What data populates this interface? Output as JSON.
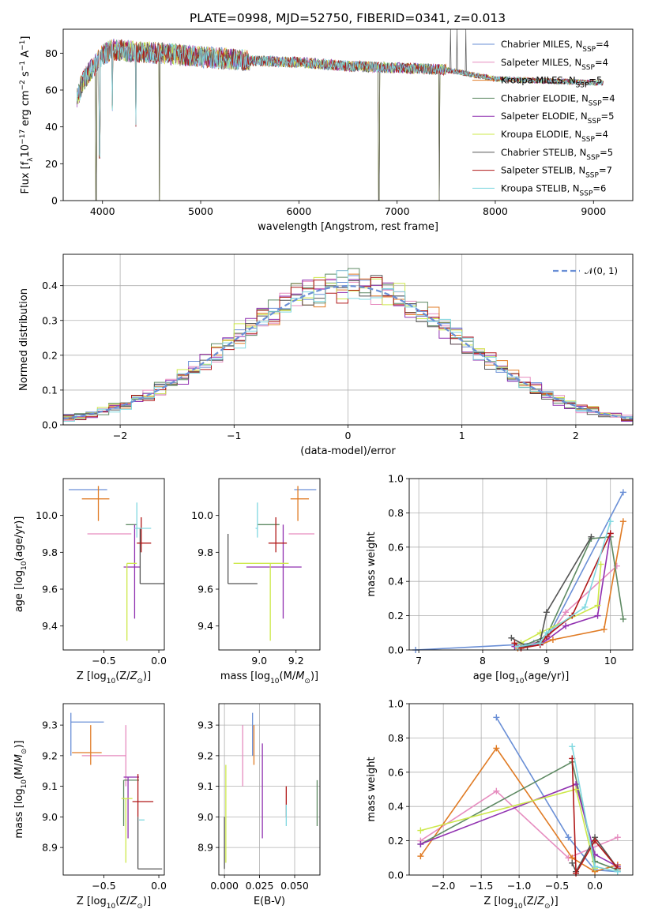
{
  "title": "PLATE=0998, MJD=52750, FIBERID=0341, z=0.013",
  "colors": [
    "#6a8fd6",
    "#e68cbf",
    "#e07b24",
    "#5e8a63",
    "#9030b0",
    "#cde84a",
    "#555555",
    "#b01818",
    "#80d8e0"
  ],
  "chart_data": [
    {
      "id": "spectrum",
      "type": "line",
      "xlabel": "wavelength [Angstrom, rest frame]",
      "ylabel": "Flux [f_λ10^-17 erg cm^-2 s^-1 A^-1]",
      "xlim": [
        3600,
        9400
      ],
      "ylim": [
        0,
        93
      ],
      "xticks": [
        4000,
        5000,
        6000,
        7000,
        8000,
        9000
      ],
      "yticks": [
        0,
        20,
        40,
        60,
        80
      ],
      "legend_position": "top-right",
      "legend": [
        "Chabrier MILES, N_SSP=4",
        "Salpeter MILES, N_SSP=4",
        "Kroupa MILES, N_SSP=5",
        "Chabrier ELODIE, N_SSP=4",
        "Salpeter ELODIE, N_SSP=5",
        "Kroupa ELODIE, N_SSP=4",
        "Chabrier STELIB, N_SSP=5",
        "Salpeter STELIB, N_SSP=7",
        "Kroupa STELIB, N_SSP=6"
      ],
      "continuum": {
        "x": [
          3740,
          3800,
          3900,
          4000,
          4100,
          4300,
          4600,
          5000,
          5500,
          6000,
          6500,
          7000,
          7500,
          8000,
          8500,
          9000,
          9100
        ],
        "y": [
          55,
          65,
          72,
          79,
          82,
          81,
          80,
          78,
          76,
          75,
          73,
          72,
          71,
          66,
          65,
          64,
          64
        ]
      },
      "dips": [
        {
          "x": 3935,
          "y": 0
        },
        {
          "x": 4580,
          "y": 0
        },
        {
          "x": 6815,
          "y": 0
        },
        {
          "x": 7430,
          "y": 0
        },
        {
          "x": 4340,
          "y": 40
        },
        {
          "x": 4100,
          "y": 48
        },
        {
          "x": 3970,
          "y": 22
        }
      ],
      "spikes": [
        {
          "x": 7545,
          "y": 93
        },
        {
          "x": 7610,
          "y": 93
        },
        {
          "x": 7700,
          "y": 93
        }
      ]
    },
    {
      "id": "residuals",
      "type": "step",
      "xlabel": "(data-model)/error",
      "ylabel": "Normed distribution",
      "xlim": [
        -2.5,
        2.5
      ],
      "ylim": [
        0,
        0.49
      ],
      "xticks": [
        -2,
        -1,
        0,
        1,
        2
      ],
      "yticks": [
        0.0,
        0.1,
        0.2,
        0.3,
        0.4
      ],
      "grid": true,
      "legend_position": "top-right",
      "legend": [
        "𝒩(0, 1)"
      ],
      "bin_width": 0.1,
      "reference": "gaussian_mean0_sigma1"
    },
    {
      "id": "age_vs_Z",
      "type": "errorbar",
      "xlabel": "Z [log10(Z/Z⊙)]",
      "ylabel": "age [log10(age/yr)]",
      "xlim": [
        -0.87,
        0.05
      ],
      "ylim": [
        9.27,
        10.2
      ],
      "xticks": [
        -0.5,
        0.0
      ],
      "yticks": [
        9.4,
        9.6,
        9.8,
        10.0
      ],
      "points": [
        {
          "x": -0.65,
          "y": 10.14,
          "xerr": [
            0.17,
            0.18
          ],
          "yerr": [
            0.0,
            0.0
          ]
        },
        {
          "x": -0.45,
          "y": 9.9,
          "xerr": [
            0.2,
            0.2
          ],
          "yerr": [
            0.0,
            0.0
          ]
        },
        {
          "x": -0.55,
          "y": 10.09,
          "xerr": [
            0.15,
            0.1
          ],
          "yerr": [
            0.12,
            0.07
          ]
        },
        {
          "x": -0.25,
          "y": 9.95,
          "xerr": [
            0.05,
            0.05
          ],
          "yerr": [
            0.0,
            0.0
          ]
        },
        {
          "x": -0.22,
          "y": 9.72,
          "xerr": [
            0.1,
            0.05
          ],
          "yerr": [
            0.28,
            0.23
          ]
        },
        {
          "x": -0.29,
          "y": 9.74,
          "xerr": [
            0.0,
            0.09
          ],
          "yerr": [
            0.42,
            0.0
          ]
        },
        {
          "x": -0.17,
          "y": 9.63,
          "xerr": [
            0.0,
            0.22
          ],
          "yerr": [
            0.0,
            0.3
          ]
        },
        {
          "x": -0.16,
          "y": 9.85,
          "xerr": [
            0.04,
            0.09
          ],
          "yerr": [
            0.05,
            0.14
          ]
        },
        {
          "x": -0.2,
          "y": 9.93,
          "xerr": [
            0.02,
            0.13
          ],
          "yerr": [
            0.05,
            0.14
          ]
        }
      ]
    },
    {
      "id": "age_vs_mass",
      "type": "errorbar",
      "xlabel": "mass [log10(M/M⊙)]",
      "ylabel": "",
      "xlim": [
        8.78,
        9.33
      ],
      "ylim": [
        9.27,
        10.2
      ],
      "xticks": [
        9.0,
        9.2
      ],
      "yticks": [
        9.4,
        9.6,
        9.8,
        10.0
      ],
      "points": [
        {
          "x": 9.31,
          "y": 10.14,
          "xerr": [
            0.12,
            0.0
          ],
          "yerr": [
            0.0,
            0.0
          ]
        },
        {
          "x": 9.2,
          "y": 9.9,
          "xerr": [
            0.04,
            0.1
          ],
          "yerr": [
            0.0,
            0.0
          ]
        },
        {
          "x": 9.21,
          "y": 10.09,
          "xerr": [
            0.04,
            0.06
          ],
          "yerr": [
            0.12,
            0.07
          ]
        },
        {
          "x": 9.02,
          "y": 9.95,
          "xerr": [
            0.03,
            0.09
          ],
          "yerr": [
            0.0,
            0.0
          ]
        },
        {
          "x": 9.13,
          "y": 9.72,
          "xerr": [
            0.2,
            0.1
          ],
          "yerr": [
            0.28,
            0.23
          ]
        },
        {
          "x": 9.06,
          "y": 9.74,
          "xerr": [
            0.2,
            0.1
          ],
          "yerr": [
            0.42,
            0.0
          ]
        },
        {
          "x": 8.83,
          "y": 9.63,
          "xerr": [
            0.0,
            0.16
          ],
          "yerr": [
            0.0,
            0.27
          ]
        },
        {
          "x": 9.09,
          "y": 9.85,
          "xerr": [
            0.04,
            0.06
          ],
          "yerr": [
            0.05,
            0.14
          ]
        },
        {
          "x": 8.99,
          "y": 9.93,
          "xerr": [
            0.01,
            0.0
          ],
          "yerr": [
            0.05,
            0.14
          ]
        }
      ]
    },
    {
      "id": "weight_vs_age",
      "type": "line",
      "xlabel": "age [log10(age/yr)]",
      "ylabel": "mass weight",
      "xlim": [
        6.85,
        10.35
      ],
      "ylim": [
        0,
        1.0
      ],
      "xticks": [
        7,
        8,
        9,
        10
      ],
      "yticks": [
        0.0,
        0.2,
        0.4,
        0.6,
        0.8,
        1.0
      ],
      "grid": true,
      "series": [
        {
          "x": [
            6.95,
            8.5,
            8.8,
            9.0,
            10.2
          ],
          "y": [
            0.0,
            0.03,
            0.04,
            0.06,
            0.92
          ]
        },
        {
          "x": [
            8.6,
            9.0,
            9.3,
            10.1
          ],
          "y": [
            0.02,
            0.06,
            0.22,
            0.49
          ]
        },
        {
          "x": [
            8.55,
            8.9,
            9.1,
            9.9,
            10.2
          ],
          "y": [
            0.01,
            0.03,
            0.06,
            0.12,
            0.75
          ]
        },
        {
          "x": [
            8.6,
            9.0,
            9.7,
            10.0,
            10.2
          ],
          "y": [
            0.02,
            0.08,
            0.65,
            0.66,
            0.18
          ]
        },
        {
          "x": [
            8.5,
            8.9,
            9.3,
            9.8,
            10.0
          ],
          "y": [
            0.02,
            0.03,
            0.14,
            0.2,
            0.68
          ]
        },
        {
          "x": [
            8.6,
            8.9,
            9.8,
            9.85
          ],
          "y": [
            0.04,
            0.1,
            0.26,
            0.5
          ]
        },
        {
          "x": [
            8.45,
            8.7,
            8.9,
            9.0,
            9.7
          ],
          "y": [
            0.07,
            0.02,
            0.05,
            0.22,
            0.66
          ]
        },
        {
          "x": [
            8.5,
            8.6,
            8.9,
            9.0,
            9.4,
            10.0
          ],
          "y": [
            0.04,
            0.01,
            0.03,
            0.08,
            0.2,
            0.68
          ]
        },
        {
          "x": [
            8.55,
            8.9,
            9.0,
            9.6,
            10.0
          ],
          "y": [
            0.02,
            0.04,
            0.1,
            0.25,
            0.75
          ]
        }
      ]
    },
    {
      "id": "mass_vs_Z",
      "type": "errorbar",
      "xlabel": "Z [log10(Z/Z⊙)]",
      "ylabel": "mass [log10(M/M⊙)]",
      "xlim": [
        -0.87,
        0.05
      ],
      "ylim": [
        8.81,
        9.37
      ],
      "xticks": [
        -0.5,
        0.0
      ],
      "yticks": [
        8.9,
        9.0,
        9.1,
        9.2,
        9.3
      ],
      "points": [
        {
          "x": -0.8,
          "y": 9.31,
          "xerr": [
            0.0,
            0.3
          ],
          "yerr": [
            0.11,
            0.03
          ]
        },
        {
          "x": -0.3,
          "y": 9.2,
          "xerr": [
            0.4,
            0.0
          ],
          "yerr": [
            0.1,
            0.1
          ]
        },
        {
          "x": -0.62,
          "y": 9.21,
          "xerr": [
            0.17,
            0.1
          ],
          "yerr": [
            0.04,
            0.09
          ]
        },
        {
          "x": -0.32,
          "y": 9.12,
          "xerr": [
            0.0,
            0.14
          ],
          "yerr": [
            0.15,
            0.0
          ]
        },
        {
          "x": -0.28,
          "y": 9.13,
          "xerr": [
            0.04,
            0.1
          ],
          "yerr": [
            0.2,
            0.0
          ]
        },
        {
          "x": -0.3,
          "y": 9.06,
          "xerr": [
            0.04,
            0.06
          ],
          "yerr": [
            0.21,
            0.0
          ]
        },
        {
          "x": -0.19,
          "y": 8.83,
          "xerr": [
            0.0,
            0.22
          ],
          "yerr": [
            0.0,
            0.17
          ]
        },
        {
          "x": -0.19,
          "y": 9.05,
          "xerr": [
            0.05,
            0.14
          ],
          "yerr": [
            0.05,
            0.09
          ]
        },
        {
          "x": -0.13,
          "y": 8.99,
          "xerr": [
            0.05,
            0.0
          ],
          "yerr": [
            0.0,
            0.0
          ]
        }
      ]
    },
    {
      "id": "mass_vs_EBV",
      "type": "errorbar",
      "xlabel": "E(B-V)",
      "ylabel": "",
      "xlim": [
        -0.004,
        0.068
      ],
      "ylim": [
        8.81,
        9.37
      ],
      "xticks": [
        0.0,
        0.025,
        0.05
      ],
      "tick_labels_x": [
        "0.000",
        "0.025",
        "0.050"
      ],
      "yticks": [
        8.9,
        9.0,
        9.1,
        9.2,
        9.3
      ],
      "grid": true,
      "points": [
        {
          "x": 0.02,
          "y": 9.31,
          "xerr": [
            0,
            0
          ],
          "yerr": [
            0.11,
            0.03
          ]
        },
        {
          "x": 0.013,
          "y": 9.2,
          "xerr": [
            0,
            0
          ],
          "yerr": [
            0.1,
            0.1
          ]
        },
        {
          "x": 0.021,
          "y": 9.21,
          "xerr": [
            0,
            0
          ],
          "yerr": [
            0.04,
            0.09
          ]
        },
        {
          "x": 0.066,
          "y": 9.12,
          "xerr": [
            0,
            0
          ],
          "yerr": [
            0.15,
            0.0
          ]
        },
        {
          "x": 0.027,
          "y": 9.13,
          "xerr": [
            0,
            0
          ],
          "yerr": [
            0.2,
            0.11
          ]
        },
        {
          "x": 0.001,
          "y": 9.06,
          "xerr": [
            0,
            0
          ],
          "yerr": [
            0.21,
            0.11
          ]
        },
        {
          "x": 0.0,
          "y": 8.83,
          "xerr": [
            0,
            0
          ],
          "yerr": [
            0.0,
            0.17
          ]
        },
        {
          "x": 0.044,
          "y": 9.05,
          "xerr": [
            0,
            0
          ],
          "yerr": [
            0.05,
            0.05
          ]
        },
        {
          "x": 0.044,
          "y": 8.99,
          "xerr": [
            0,
            0
          ],
          "yerr": [
            0.02,
            0.05
          ]
        }
      ]
    },
    {
      "id": "weight_vs_Z",
      "type": "line",
      "xlabel": "Z [log10(Z/Z⊙)]",
      "ylabel": "mass weight",
      "xlim": [
        -2.45,
        0.5
      ],
      "ylim": [
        0,
        1.0
      ],
      "xticks": [
        -2.0,
        -1.5,
        -1.0,
        -0.5,
        0.0
      ],
      "yticks": [
        0.0,
        0.2,
        0.4,
        0.6,
        0.8,
        1.0
      ],
      "grid": true,
      "series": [
        {
          "x": [
            -1.3,
            -0.35,
            0.0,
            0.3
          ],
          "y": [
            0.92,
            0.22,
            0.03,
            0.02
          ]
        },
        {
          "x": [
            -2.3,
            -1.3,
            -0.35,
            0.3
          ],
          "y": [
            0.2,
            0.49,
            0.1,
            0.22
          ]
        },
        {
          "x": [
            -2.3,
            -1.3,
            -0.3,
            0.0,
            0.3
          ],
          "y": [
            0.11,
            0.74,
            0.1,
            0.02,
            0.06
          ]
        },
        {
          "x": [
            -2.3,
            -0.3,
            0.0,
            0.3
          ],
          "y": [
            0.18,
            0.66,
            0.08,
            0.03
          ]
        },
        {
          "x": [
            -2.3,
            -0.25,
            0.0,
            0.3
          ],
          "y": [
            0.18,
            0.53,
            0.12,
            0.05
          ]
        },
        {
          "x": [
            -2.3,
            -0.25,
            0.0
          ],
          "y": [
            0.26,
            0.5,
            0.04
          ]
        },
        {
          "x": [
            -0.3,
            -0.25,
            0.0,
            0.3
          ],
          "y": [
            0.07,
            0.02,
            0.22,
            0.04
          ]
        },
        {
          "x": [
            -0.3,
            -0.25,
            0.0,
            0.3
          ],
          "y": [
            0.68,
            0.01,
            0.2,
            0.04
          ]
        },
        {
          "x": [
            -0.3,
            0.0,
            0.3
          ],
          "y": [
            0.75,
            0.05,
            0.02
          ]
        }
      ]
    }
  ]
}
